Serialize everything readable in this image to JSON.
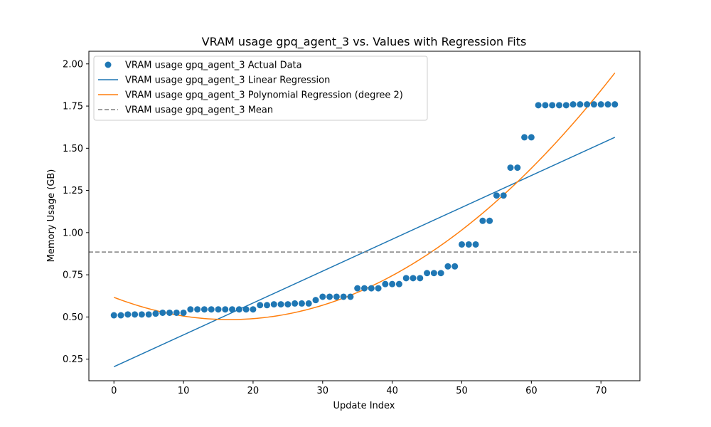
{
  "chart_data": {
    "type": "scatter",
    "title": "VRAM usage gpq_agent_3 vs. Values with Regression Fits",
    "xlabel": "Update Index",
    "ylabel": "Memory Usage (GB)",
    "xlim": [
      -3.6,
      75.6
    ],
    "ylim": [
      0.122,
      2.075
    ],
    "xticks": [
      0,
      10,
      20,
      30,
      40,
      50,
      60,
      70
    ],
    "xtick_labels": [
      "0",
      "10",
      "20",
      "30",
      "40",
      "50",
      "60",
      "70"
    ],
    "yticks": [
      0.25,
      0.5,
      0.75,
      1.0,
      1.25,
      1.5,
      1.75,
      2.0
    ],
    "ytick_labels": [
      "0.25",
      "0.50",
      "0.75",
      "1.00",
      "1.25",
      "1.50",
      "1.75",
      "2.00"
    ],
    "grid": false,
    "legend_position": "top-left",
    "series": [
      {
        "name": "VRAM usage gpq_agent_3 Actual Data",
        "kind": "scatter",
        "color": "#1f77b4",
        "x": [
          0,
          1,
          2,
          3,
          4,
          5,
          6,
          7,
          8,
          9,
          10,
          11,
          12,
          13,
          14,
          15,
          16,
          17,
          18,
          19,
          20,
          21,
          22,
          23,
          24,
          25,
          26,
          27,
          28,
          29,
          30,
          31,
          32,
          33,
          34,
          35,
          36,
          37,
          38,
          39,
          40,
          41,
          42,
          43,
          44,
          45,
          46,
          47,
          48,
          49,
          50,
          51,
          52,
          53,
          54,
          55,
          56,
          57,
          58,
          59,
          60,
          61,
          62,
          63,
          64,
          65,
          66,
          67,
          68,
          69,
          70,
          71,
          72
        ],
        "y": [
          0.51,
          0.51,
          0.515,
          0.515,
          0.515,
          0.515,
          0.52,
          0.525,
          0.525,
          0.525,
          0.525,
          0.545,
          0.545,
          0.545,
          0.545,
          0.545,
          0.545,
          0.545,
          0.545,
          0.545,
          0.545,
          0.57,
          0.57,
          0.575,
          0.575,
          0.575,
          0.58,
          0.58,
          0.58,
          0.6,
          0.62,
          0.62,
          0.62,
          0.62,
          0.62,
          0.67,
          0.67,
          0.67,
          0.67,
          0.695,
          0.695,
          0.695,
          0.73,
          0.73,
          0.73,
          0.76,
          0.76,
          0.76,
          0.8,
          0.8,
          0.93,
          0.93,
          0.93,
          1.07,
          1.07,
          1.22,
          1.22,
          1.385,
          1.385,
          1.565,
          1.565,
          1.755,
          1.755,
          1.755,
          1.755,
          1.755,
          1.76,
          1.76,
          1.76,
          1.76,
          1.76,
          1.76,
          1.76
        ]
      },
      {
        "name": "VRAM usage gpq_agent_3 Linear Regression",
        "kind": "line",
        "color": "#1f77b4",
        "x": [
          0,
          72
        ],
        "y": [
          0.205,
          1.565
        ]
      },
      {
        "name": "VRAM usage gpq_agent_3 Polynomial Regression (degree 2)",
        "kind": "poly2",
        "color": "#ff7f0e",
        "coefficients": [
          0.6165,
          -0.01587,
          0.000477
        ],
        "x_range": [
          0,
          72
        ]
      },
      {
        "name": "VRAM usage gpq_agent_3 Mean",
        "kind": "hline",
        "color": "#7f7f7f",
        "y": 0.885
      }
    ]
  }
}
